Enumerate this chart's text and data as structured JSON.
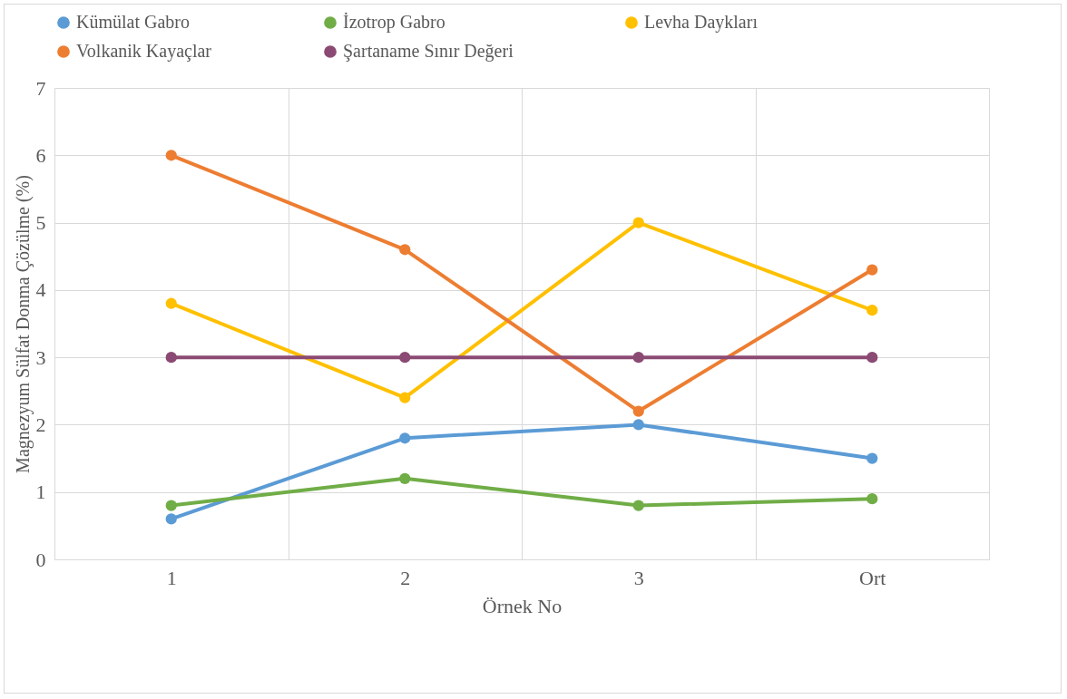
{
  "chart_data": {
    "type": "line",
    "xlabel": "Örnek No",
    "ylabel": "Magnezyum Sülfat Donma Çözülme (%)",
    "categories": [
      "1",
      "2",
      "3",
      "Ort"
    ],
    "ylim": [
      0,
      7
    ],
    "yticks": [
      0,
      1,
      2,
      3,
      4,
      5,
      6,
      7
    ],
    "grid": true,
    "legend": "top",
    "marker": "circle",
    "line_style": "solid",
    "series": [
      {
        "name": "Kümülat Gabro",
        "color": "#5b9bd5",
        "values": [
          0.6,
          1.8,
          2.0,
          1.5
        ]
      },
      {
        "name": "İzotrop Gabro",
        "color": "#70ad47",
        "values": [
          0.8,
          1.2,
          0.8,
          0.9
        ]
      },
      {
        "name": "Levha Daykları",
        "color": "#ffc000",
        "values": [
          3.8,
          2.4,
          5.0,
          3.7
        ]
      },
      {
        "name": "Volkanik Kayaçlar",
        "color": "#ed7d31",
        "values": [
          6.0,
          4.6,
          2.2,
          4.3
        ]
      },
      {
        "name": "Şartaname Sınır Değeri",
        "color": "#8b4a73",
        "values": [
          3,
          3,
          3,
          3
        ]
      }
    ]
  }
}
